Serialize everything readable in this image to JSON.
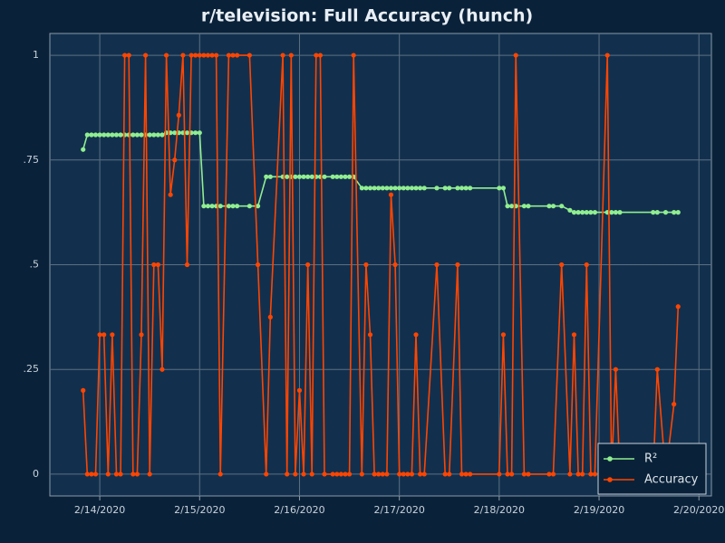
{
  "chart_data": {
    "type": "line",
    "title": "r/television: Full Accuracy (hunch)",
    "x": [
      "2020-02-13T20:00",
      "2020-02-13T21:00",
      "2020-02-13T22:00",
      "2020-02-13T23:00",
      "2020-02-14T00:00",
      "2020-02-14T01:00",
      "2020-02-14T02:00",
      "2020-02-14T03:00",
      "2020-02-14T04:00",
      "2020-02-14T05:00",
      "2020-02-14T06:00",
      "2020-02-14T07:00",
      "2020-02-14T08:00",
      "2020-02-14T09:00",
      "2020-02-14T10:00",
      "2020-02-14T11:00",
      "2020-02-14T12:00",
      "2020-02-14T13:00",
      "2020-02-14T14:00",
      "2020-02-14T15:00",
      "2020-02-14T16:00",
      "2020-02-14T17:00",
      "2020-02-14T18:00",
      "2020-02-14T19:00",
      "2020-02-14T20:00",
      "2020-02-14T21:00",
      "2020-02-14T22:00",
      "2020-02-14T23:00",
      "2020-02-15T00:00",
      "2020-02-15T01:00",
      "2020-02-15T02:00",
      "2020-02-15T03:00",
      "2020-02-15T04:00",
      "2020-02-15T05:00",
      "2020-02-15T07:00",
      "2020-02-15T08:00",
      "2020-02-15T09:00",
      "2020-02-15T12:00",
      "2020-02-15T14:00",
      "2020-02-15T16:00",
      "2020-02-15T17:00",
      "2020-02-15T20:00",
      "2020-02-15T21:00",
      "2020-02-15T22:00",
      "2020-02-15T23:00",
      "2020-02-16T00:00",
      "2020-02-16T01:00",
      "2020-02-16T02:00",
      "2020-02-16T03:00",
      "2020-02-16T04:00",
      "2020-02-16T05:00",
      "2020-02-16T06:00",
      "2020-02-16T08:00",
      "2020-02-16T09:00",
      "2020-02-16T10:00",
      "2020-02-16T11:00",
      "2020-02-16T12:00",
      "2020-02-16T13:00",
      "2020-02-16T15:00",
      "2020-02-16T16:00",
      "2020-02-16T17:00",
      "2020-02-16T18:00",
      "2020-02-16T19:00",
      "2020-02-16T20:00",
      "2020-02-16T21:00",
      "2020-02-16T22:00",
      "2020-02-16T23:00",
      "2020-02-17T00:00",
      "2020-02-17T01:00",
      "2020-02-17T02:00",
      "2020-02-17T03:00",
      "2020-02-17T04:00",
      "2020-02-17T05:00",
      "2020-02-17T06:00",
      "2020-02-17T09:00",
      "2020-02-17T11:00",
      "2020-02-17T12:00",
      "2020-02-17T14:00",
      "2020-02-17T15:00",
      "2020-02-17T16:00",
      "2020-02-17T17:00",
      "2020-02-18T00:00",
      "2020-02-18T01:00",
      "2020-02-18T02:00",
      "2020-02-18T03:00",
      "2020-02-18T04:00",
      "2020-02-18T06:00",
      "2020-02-18T07:00",
      "2020-02-18T12:00",
      "2020-02-18T13:00",
      "2020-02-18T15:00",
      "2020-02-18T17:00",
      "2020-02-18T18:00",
      "2020-02-18T19:00",
      "2020-02-18T20:00",
      "2020-02-18T21:00",
      "2020-02-18T22:00",
      "2020-02-18T23:00",
      "2020-02-19T02:00",
      "2020-02-19T03:00",
      "2020-02-19T04:00",
      "2020-02-19T05:00",
      "2020-02-19T13:00",
      "2020-02-19T14:00",
      "2020-02-19T16:00",
      "2020-02-19T18:00",
      "2020-02-19T19:00"
    ],
    "series": [
      {
        "name": "R²",
        "color": "#90ee90",
        "values": [
          0.775,
          0.81,
          0.81,
          0.81,
          0.81,
          0.81,
          0.81,
          0.81,
          0.81,
          0.81,
          0.81,
          0.81,
          0.81,
          0.81,
          0.81,
          0.81,
          0.81,
          0.81,
          0.81,
          0.81,
          0.815,
          0.815,
          0.815,
          0.815,
          0.815,
          0.815,
          0.815,
          0.815,
          0.815,
          0.64,
          0.64,
          0.64,
          0.64,
          0.64,
          0.64,
          0.64,
          0.64,
          0.64,
          0.64,
          0.71,
          0.71,
          0.71,
          0.71,
          0.71,
          0.71,
          0.71,
          0.71,
          0.71,
          0.71,
          0.71,
          0.71,
          0.71,
          0.71,
          0.71,
          0.71,
          0.71,
          0.71,
          0.71,
          0.683,
          0.683,
          0.683,
          0.683,
          0.683,
          0.683,
          0.683,
          0.683,
          0.683,
          0.683,
          0.683,
          0.683,
          0.683,
          0.683,
          0.683,
          0.683,
          0.683,
          0.683,
          0.683,
          0.683,
          0.683,
          0.683,
          0.683,
          0.683,
          0.683,
          0.64,
          0.64,
          0.64,
          0.64,
          0.64,
          0.64,
          0.64,
          0.64,
          0.63,
          0.625,
          0.625,
          0.625,
          0.625,
          0.625,
          0.625,
          0.625,
          0.625,
          0.625,
          0.625,
          0.625,
          0.625,
          0.625,
          0.625,
          0.625
        ]
      },
      {
        "name": "Accuracy",
        "color": "#ff4500",
        "values": [
          0.2,
          0,
          0,
          0,
          0.333,
          0.333,
          0,
          0.333,
          0,
          0,
          1,
          1,
          0,
          0,
          0.333,
          1,
          0,
          0.5,
          0.5,
          0.25,
          1,
          0.667,
          0.75,
          0.857,
          1,
          0.5,
          1,
          1,
          1,
          1,
          1,
          1,
          1,
          0,
          1,
          1,
          1,
          1,
          0.5,
          0,
          0.375,
          1,
          0,
          1,
          0,
          0.2,
          0,
          0.5,
          0,
          1,
          1,
          0,
          0,
          0,
          0,
          0,
          0,
          1,
          0,
          0.5,
          0.333,
          0,
          0,
          0,
          0,
          0.667,
          0.5,
          0,
          0,
          0,
          0,
          0.333,
          0,
          0,
          0.5,
          0,
          0,
          0.5,
          0,
          0,
          0,
          0,
          0.333,
          0,
          0,
          1,
          0,
          0,
          0,
          0,
          0.5,
          0,
          0.333,
          0,
          0,
          0.5,
          0,
          0,
          1,
          0,
          0.25,
          0,
          0,
          0.25,
          0,
          0.167,
          0.4
        ]
      }
    ],
    "xlim": [
      "2020-02-13T12:00",
      "2020-02-20T03:00"
    ],
    "xticks": [
      {
        "value": "2020-02-14T00:00",
        "label": "2/14/2020"
      },
      {
        "value": "2020-02-15T00:00",
        "label": "2/15/2020"
      },
      {
        "value": "2020-02-16T00:00",
        "label": "2/16/2020"
      },
      {
        "value": "2020-02-17T00:00",
        "label": "2/17/2020"
      },
      {
        "value": "2020-02-18T00:00",
        "label": "2/18/2020"
      },
      {
        "value": "2020-02-19T00:00",
        "label": "2/19/2020"
      },
      {
        "value": "2020-02-20T00:00",
        "label": "2/20/2020"
      }
    ],
    "ylim": [
      -0.052,
      1.052
    ],
    "yticks": [
      0,
      {
        "value": 0.25,
        "label": ".25"
      },
      {
        "value": 0.5,
        "label": ".5"
      },
      {
        "value": 0.75,
        "label": ".75"
      },
      1
    ],
    "grid": true,
    "legend": "lower right"
  }
}
